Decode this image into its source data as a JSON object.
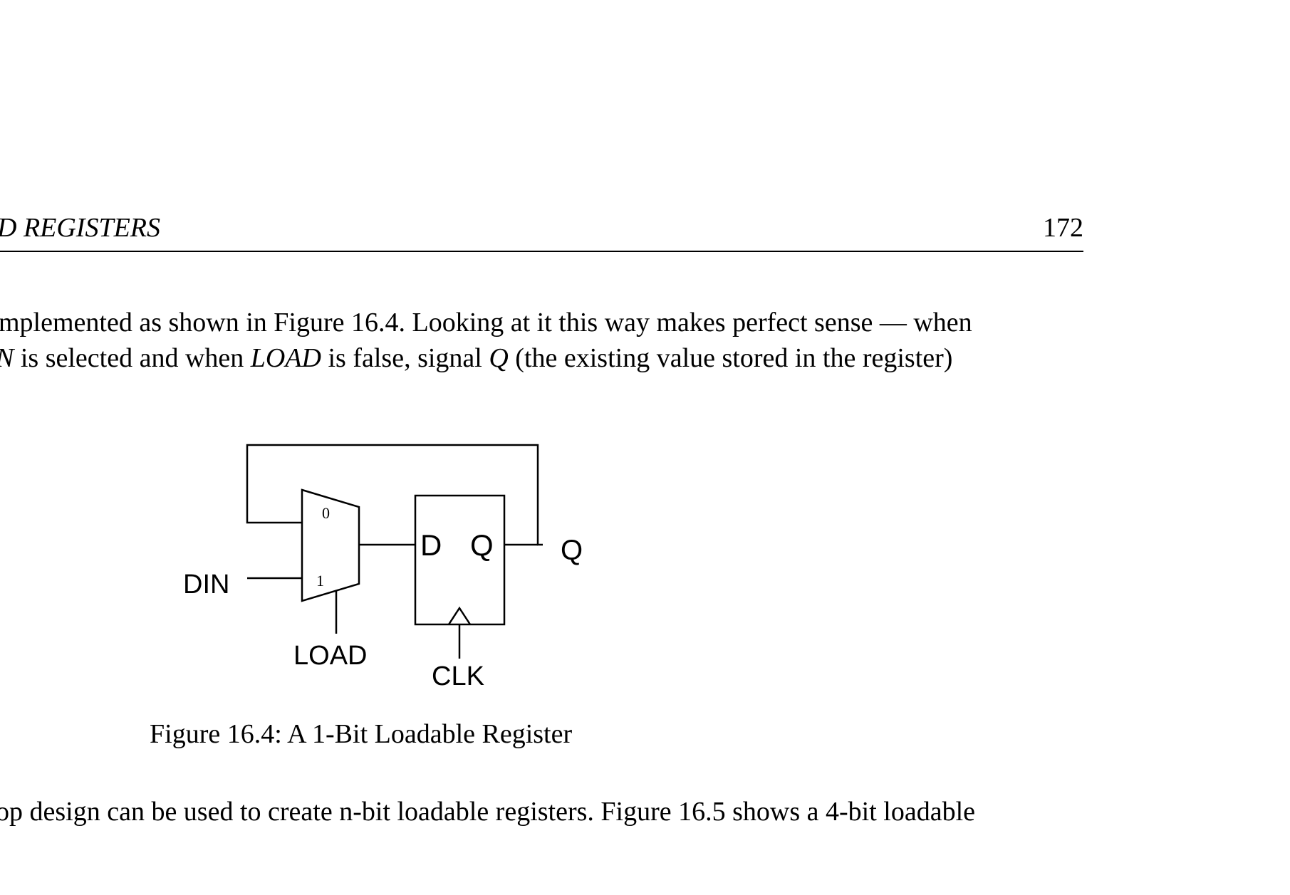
{
  "header": {
    "title": "D REGISTERS",
    "page_number": "172"
  },
  "body": {
    "line1": "mplemented as shown in Figure 16.4. Looking at it this way makes perfect sense — when",
    "line2_a": "N",
    "line2_b": " is selected and when ",
    "line2_c": "LOAD",
    "line2_d": " is false, signal ",
    "line2_e": "Q",
    "line2_f": " (the existing value stored in the register)",
    "line3": "op design can be used to create n-bit loadable registers. Figure 16.5 shows a 4-bit loadable"
  },
  "figure": {
    "mux_input_0": "0",
    "mux_input_1": "1",
    "din_label": "DIN",
    "load_label": "LOAD",
    "ff_d_label": "D",
    "ff_q_label": "Q",
    "output_label": "Q",
    "clk_label": "CLK",
    "caption": "Figure 16.4: A 1-Bit Loadable Register"
  }
}
